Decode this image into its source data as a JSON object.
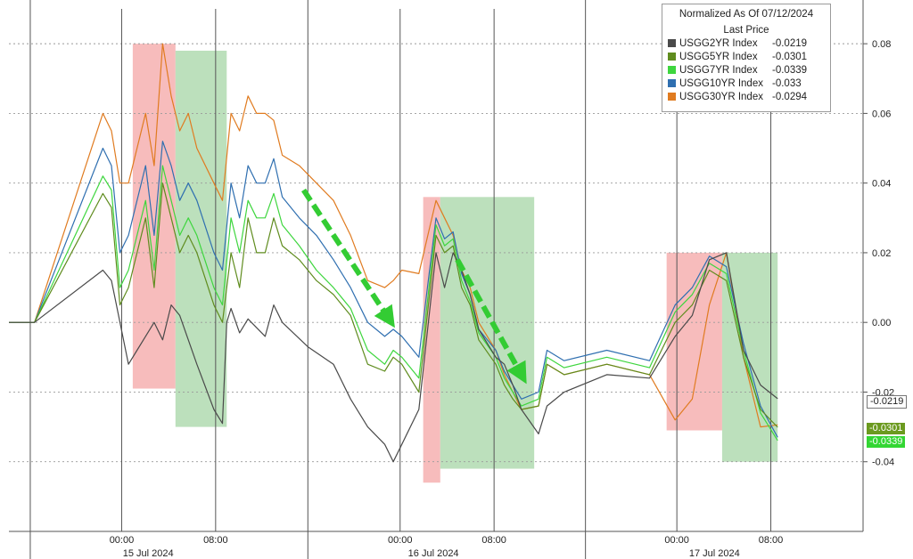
{
  "chart_data": {
    "type": "line",
    "legend": {
      "title": "Normalized As Of 07/12/2024",
      "subtitle": "Last Price",
      "placement": "top-right"
    },
    "x_tick_labels": [
      "00:00",
      "08:00",
      "00:00",
      "08:00",
      "00:00",
      "08:00"
    ],
    "day_labels": [
      "15 Jul 2024",
      "16 Jul 2024",
      "17 Jul 2024"
    ],
    "y_tick_labels": [
      "0.08",
      "0.06",
      "0.04",
      "0.02",
      "0.00",
      "-0.02",
      "-0.04"
    ],
    "y_ticks": [
      0.08,
      0.06,
      0.04,
      0.02,
      0.0,
      -0.02,
      -0.04
    ],
    "ylim": [
      -0.06,
      0.09
    ],
    "xlim": [
      0,
      100
    ],
    "grid": true,
    "series": [
      {
        "name": "USGG2YR Index",
        "last": "-0.0219",
        "label_text": "-0.0219",
        "color": "#4a4a4a",
        "x": [
          0,
          3,
          11,
          12,
          14,
          15,
          17,
          18,
          19,
          20,
          22,
          24,
          25,
          25.5,
          26,
          27,
          28,
          30,
          31,
          32,
          35,
          38,
          40,
          42,
          44,
          45,
          46,
          48,
          50,
          51,
          52,
          53,
          54,
          55,
          57,
          58,
          59,
          60,
          62,
          63,
          65,
          70,
          75,
          78,
          80,
          82,
          84,
          86,
          88,
          90
        ],
        "values": [
          0.0,
          0.0,
          0.015,
          0.012,
          -0.012,
          -0.008,
          0.0,
          -0.005,
          0.005,
          0.002,
          -0.012,
          -0.025,
          -0.029,
          0.0,
          0.004,
          -0.003,
          0.001,
          -0.004,
          0.005,
          0.0,
          -0.007,
          -0.012,
          -0.022,
          -0.03,
          -0.035,
          -0.04,
          -0.035,
          -0.025,
          0.02,
          0.01,
          0.02,
          0.015,
          0.008,
          -0.002,
          -0.01,
          -0.012,
          -0.018,
          -0.025,
          -0.032,
          -0.024,
          -0.02,
          -0.015,
          -0.016,
          -0.004,
          0.002,
          0.018,
          0.02,
          -0.008,
          -0.018,
          -0.0219
        ]
      },
      {
        "name": "USGG5YR Index",
        "last": "-0.0301",
        "label_text": "-0.0301",
        "color": "#5f8c1e",
        "x": [
          0,
          3,
          11,
          12,
          13,
          14,
          16,
          17,
          18,
          19,
          20,
          21,
          22,
          24,
          25,
          26,
          27,
          28,
          29,
          30,
          31,
          32,
          34,
          36,
          38,
          40,
          42,
          44,
          45,
          46,
          48,
          50,
          51,
          52,
          53,
          54,
          55,
          57,
          58,
          59,
          60,
          62,
          63,
          65,
          70,
          75,
          78,
          80,
          82,
          84,
          86,
          88,
          90
        ],
        "values": [
          0.0,
          0.0,
          0.037,
          0.033,
          0.005,
          0.01,
          0.03,
          0.01,
          0.04,
          0.03,
          0.02,
          0.025,
          0.02,
          0.005,
          0.0,
          0.02,
          0.01,
          0.03,
          0.02,
          0.02,
          0.03,
          0.022,
          0.018,
          0.012,
          0.008,
          0.002,
          -0.012,
          -0.014,
          -0.01,
          -0.012,
          -0.02,
          0.025,
          0.02,
          0.022,
          0.01,
          0.005,
          -0.005,
          -0.012,
          -0.018,
          -0.022,
          -0.025,
          -0.024,
          -0.012,
          -0.015,
          -0.012,
          -0.015,
          0.0,
          0.005,
          0.015,
          0.012,
          -0.01,
          -0.025,
          -0.0301
        ]
      },
      {
        "name": "USGG7YR Index",
        "last": "-0.0339",
        "label_text": "-0.0339",
        "color": "#3ed63e",
        "x": [
          0,
          3,
          11,
          12,
          13,
          14,
          16,
          17,
          18,
          19,
          20,
          21,
          22,
          24,
          25,
          26,
          27,
          28,
          29,
          30,
          31,
          32,
          34,
          36,
          38,
          40,
          42,
          44,
          45,
          46,
          48,
          50,
          51,
          52,
          53,
          54,
          55,
          57,
          58,
          59,
          60,
          62,
          63,
          65,
          70,
          75,
          78,
          80,
          82,
          84,
          86,
          88,
          90
        ],
        "values": [
          0.0,
          0.0,
          0.042,
          0.038,
          0.01,
          0.015,
          0.035,
          0.015,
          0.045,
          0.035,
          0.025,
          0.03,
          0.025,
          0.01,
          0.005,
          0.03,
          0.02,
          0.035,
          0.03,
          0.03,
          0.037,
          0.028,
          0.022,
          0.015,
          0.01,
          0.004,
          -0.008,
          -0.012,
          -0.008,
          -0.01,
          -0.016,
          0.028,
          0.022,
          0.024,
          0.012,
          0.006,
          -0.003,
          -0.01,
          -0.016,
          -0.02,
          -0.024,
          -0.022,
          -0.01,
          -0.013,
          -0.01,
          -0.013,
          0.003,
          0.008,
          0.017,
          0.014,
          -0.008,
          -0.026,
          -0.0339
        ]
      },
      {
        "name": "USGG10YR Index",
        "last": "-0.033",
        "label_text": "",
        "color": "#2f6fb0",
        "x": [
          0,
          3,
          11,
          12,
          13,
          14,
          16,
          17,
          18,
          19,
          20,
          21,
          22,
          24,
          25,
          26,
          27,
          28,
          29,
          30,
          31,
          32,
          34,
          36,
          38,
          40,
          42,
          44,
          45,
          46,
          48,
          50,
          51,
          52,
          53,
          54,
          55,
          57,
          58,
          59,
          60,
          62,
          63,
          65,
          70,
          75,
          78,
          80,
          82,
          84,
          86,
          88,
          90
        ],
        "values": [
          0.0,
          0.0,
          0.05,
          0.045,
          0.02,
          0.025,
          0.045,
          0.025,
          0.052,
          0.045,
          0.035,
          0.04,
          0.035,
          0.02,
          0.015,
          0.04,
          0.03,
          0.045,
          0.04,
          0.04,
          0.047,
          0.036,
          0.03,
          0.025,
          0.018,
          0.01,
          0.0,
          -0.004,
          -0.002,
          -0.004,
          -0.01,
          0.03,
          0.024,
          0.026,
          0.014,
          0.008,
          -0.002,
          -0.008,
          -0.014,
          -0.018,
          -0.022,
          -0.02,
          -0.008,
          -0.011,
          -0.008,
          -0.011,
          0.005,
          0.01,
          0.019,
          0.016,
          -0.006,
          -0.024,
          -0.033
        ]
      },
      {
        "name": "USGG30YR Index",
        "last": "-0.0294",
        "label_text": "",
        "color": "#e07b20",
        "x": [
          0,
          3,
          11,
          12,
          13,
          14,
          16,
          17,
          18,
          19,
          20,
          21,
          22,
          24,
          25,
          26,
          27,
          28,
          29,
          30,
          31,
          32,
          34,
          36,
          38,
          40,
          42,
          44,
          45,
          46,
          48,
          50,
          51,
          52,
          53,
          54,
          55,
          57,
          58,
          59,
          60,
          62,
          63,
          65,
          70,
          75,
          78,
          80,
          82,
          84,
          86,
          88,
          90
        ],
        "values": [
          0.0,
          0.0,
          0.06,
          0.055,
          0.04,
          0.04,
          0.06,
          0.045,
          0.08,
          0.065,
          0.055,
          0.06,
          0.05,
          0.04,
          0.035,
          0.06,
          0.055,
          0.065,
          0.06,
          0.06,
          0.058,
          0.048,
          0.045,
          0.04,
          0.035,
          0.025,
          0.012,
          0.01,
          0.012,
          0.015,
          0.014,
          0.035,
          0.03,
          0.025,
          0.015,
          0.01,
          0.0,
          -0.008,
          -0.015,
          -0.02,
          -0.025,
          -0.024,
          -0.012,
          -0.015,
          -0.012,
          -0.015,
          -0.028,
          -0.022,
          0.005,
          0.02,
          -0.01,
          -0.03,
          -0.0294
        ]
      }
    ],
    "shaded_regions": [
      {
        "color": "#f4a6a6",
        "x0": 14.5,
        "x1": 19.5,
        "y0": 0.08,
        "y1": -0.019
      },
      {
        "color": "#a6d6a6",
        "x0": 19.5,
        "x1": 25.5,
        "y0": 0.078,
        "y1": -0.03
      },
      {
        "color": "#f4a6a6",
        "x0": 48.5,
        "x1": 50.5,
        "y0": 0.036,
        "y1": -0.046
      },
      {
        "color": "#a6d6a6",
        "x0": 50.5,
        "x1": 61.5,
        "y0": 0.036,
        "y1": -0.042
      },
      {
        "color": "#f4a6a6",
        "x0": 77,
        "x1": 83.5,
        "y0": 0.02,
        "y1": -0.031
      },
      {
        "color": "#a6d6a6",
        "x0": 83.5,
        "x1": 90,
        "y0": 0.02,
        "y1": -0.04
      }
    ],
    "arrows": [
      {
        "color": "#33cc33",
        "x0": 34.5,
        "y0": 0.038,
        "x1": 44.5,
        "y1": 0.001
      },
      {
        "color": "#33cc33",
        "x0": 52.5,
        "y0": 0.018,
        "x1": 60,
        "y1": -0.015
      }
    ]
  }
}
